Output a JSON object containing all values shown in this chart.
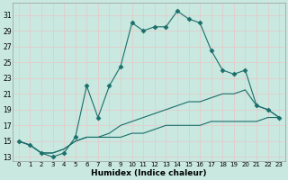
{
  "background_color": "#c8e8e0",
  "grid_color": "#e8c8c8",
  "line_color": "#1a6e6a",
  "xlabel": "Humidex (Indice chaleur)",
  "xlim": [
    -0.5,
    23.5
  ],
  "ylim": [
    12.5,
    32.5
  ],
  "yticks": [
    13,
    15,
    17,
    19,
    21,
    23,
    25,
    27,
    29,
    31
  ],
  "xticks": [
    0,
    1,
    2,
    3,
    4,
    5,
    6,
    7,
    8,
    9,
    10,
    11,
    12,
    13,
    14,
    15,
    16,
    17,
    18,
    19,
    20,
    21,
    22,
    23
  ],
  "lines": [
    {
      "x": [
        0,
        1,
        2,
        3,
        4,
        5,
        6,
        7,
        8,
        9,
        10,
        11,
        12,
        13,
        14,
        15,
        16,
        17,
        18,
        19,
        20,
        21,
        22,
        23
      ],
      "y": [
        15,
        14.5,
        13.5,
        13,
        13.5,
        15.5,
        22,
        18,
        22,
        24.5,
        30,
        29,
        29.5,
        29.5,
        31.5,
        30.5,
        30,
        26.5,
        24,
        23.5,
        24,
        19.5,
        19,
        18
      ],
      "marker": "D",
      "markersize": 2.5,
      "linewidth": 0.8
    },
    {
      "x": [
        0,
        1,
        2,
        3,
        4,
        5,
        6,
        7,
        8,
        9,
        10,
        11,
        12,
        13,
        14,
        15,
        16,
        17,
        18,
        19,
        20,
        21,
        22,
        23
      ],
      "y": [
        15,
        14.5,
        13.5,
        13.5,
        14,
        15,
        15.5,
        15.5,
        16,
        17,
        17.5,
        18,
        18.5,
        19,
        19.5,
        20,
        20,
        20.5,
        21,
        21,
        21.5,
        19.5,
        19,
        18
      ],
      "marker": null,
      "markersize": 0,
      "linewidth": 0.8
    },
    {
      "x": [
        0,
        1,
        2,
        3,
        4,
        5,
        6,
        7,
        8,
        9,
        10,
        11,
        12,
        13,
        14,
        15,
        16,
        17,
        18,
        19,
        20,
        21,
        22,
        23
      ],
      "y": [
        15,
        14.5,
        13.5,
        13.5,
        14,
        15,
        15.5,
        15.5,
        15.5,
        15.5,
        16,
        16,
        16.5,
        17,
        17,
        17,
        17,
        17.5,
        17.5,
        17.5,
        17.5,
        17.5,
        18,
        18
      ],
      "marker": null,
      "markersize": 0,
      "linewidth": 0.8
    }
  ]
}
